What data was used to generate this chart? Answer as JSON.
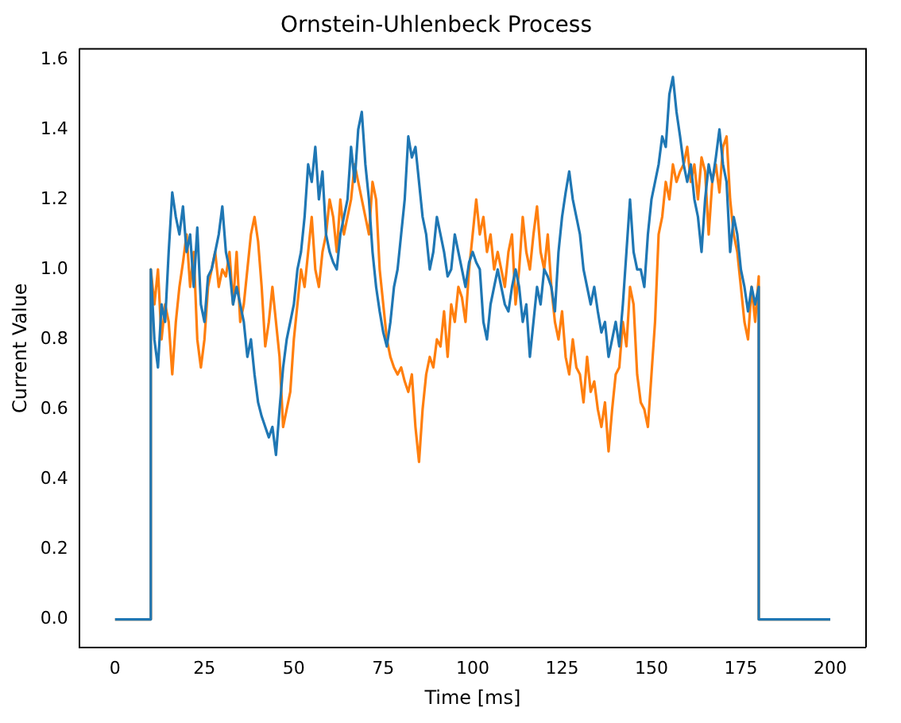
{
  "chart_data": {
    "type": "line",
    "title": "Ornstein-Uhlenbeck Process",
    "xlabel": "Time [ms]",
    "ylabel": "Current Value",
    "x": [
      0,
      10,
      10,
      11,
      12,
      13,
      14,
      15,
      16,
      17,
      18,
      19,
      20,
      21,
      22,
      23,
      24,
      25,
      26,
      27,
      28,
      29,
      30,
      31,
      32,
      33,
      34,
      35,
      36,
      37,
      38,
      39,
      40,
      41,
      42,
      43,
      44,
      45,
      46,
      47,
      48,
      49,
      50,
      51,
      52,
      53,
      54,
      55,
      56,
      57,
      58,
      59,
      60,
      61,
      62,
      63,
      64,
      65,
      66,
      67,
      68,
      69,
      70,
      71,
      72,
      73,
      74,
      75,
      76,
      77,
      78,
      79,
      80,
      81,
      82,
      83,
      84,
      85,
      86,
      87,
      88,
      89,
      90,
      91,
      92,
      93,
      94,
      95,
      96,
      97,
      98,
      99,
      100,
      101,
      102,
      103,
      104,
      105,
      106,
      107,
      108,
      109,
      110,
      111,
      112,
      113,
      114,
      115,
      116,
      117,
      118,
      119,
      120,
      121,
      122,
      123,
      124,
      125,
      126,
      127,
      128,
      129,
      130,
      131,
      132,
      133,
      134,
      135,
      136,
      137,
      138,
      139,
      140,
      141,
      142,
      143,
      144,
      145,
      146,
      147,
      148,
      149,
      150,
      151,
      152,
      153,
      154,
      155,
      156,
      157,
      158,
      159,
      160,
      161,
      162,
      163,
      164,
      165,
      166,
      167,
      168,
      169,
      170,
      171,
      172,
      173,
      174,
      175,
      176,
      177,
      178,
      179,
      180,
      180,
      200
    ],
    "series": [
      {
        "color": "#1f77b4",
        "values": [
          0,
          0,
          1.0,
          0.8,
          0.72,
          0.9,
          0.85,
          1.05,
          1.22,
          1.15,
          1.1,
          1.18,
          1.05,
          1.1,
          0.95,
          1.12,
          0.9,
          0.85,
          0.98,
          1.0,
          1.05,
          1.1,
          1.18,
          1.05,
          1.0,
          0.9,
          0.95,
          0.9,
          0.85,
          0.75,
          0.8,
          0.7,
          0.62,
          0.58,
          0.55,
          0.52,
          0.55,
          0.47,
          0.6,
          0.72,
          0.8,
          0.85,
          0.9,
          1.0,
          1.05,
          1.15,
          1.3,
          1.25,
          1.35,
          1.2,
          1.28,
          1.1,
          1.05,
          1.02,
          1.0,
          1.1,
          1.15,
          1.2,
          1.35,
          1.25,
          1.4,
          1.45,
          1.3,
          1.2,
          1.05,
          0.95,
          0.88,
          0.82,
          0.78,
          0.85,
          0.95,
          1.0,
          1.1,
          1.2,
          1.38,
          1.32,
          1.35,
          1.25,
          1.15,
          1.1,
          1.0,
          1.05,
          1.15,
          1.1,
          1.05,
          0.98,
          1.0,
          1.1,
          1.05,
          1.0,
          0.95,
          1.02,
          1.05,
          1.02,
          1.0,
          0.85,
          0.8,
          0.9,
          0.95,
          1.0,
          0.95,
          0.9,
          0.88,
          0.95,
          1.0,
          0.95,
          0.85,
          0.9,
          0.75,
          0.85,
          0.95,
          0.9,
          1.0,
          0.98,
          0.95,
          0.88,
          1.05,
          1.15,
          1.22,
          1.28,
          1.2,
          1.15,
          1.1,
          1.0,
          0.95,
          0.9,
          0.95,
          0.88,
          0.82,
          0.85,
          0.75,
          0.8,
          0.85,
          0.78,
          0.9,
          1.05,
          1.2,
          1.05,
          1.0,
          1.0,
          0.95,
          1.1,
          1.2,
          1.25,
          1.3,
          1.38,
          1.35,
          1.5,
          1.55,
          1.45,
          1.38,
          1.3,
          1.25,
          1.3,
          1.2,
          1.15,
          1.05,
          1.2,
          1.3,
          1.25,
          1.32,
          1.4,
          1.3,
          1.25,
          1.05,
          1.15,
          1.1,
          1.0,
          0.95,
          0.88,
          0.95,
          0.9,
          0.95,
          0,
          0
        ]
      },
      {
        "color": "#ff7f0e",
        "values": [
          0,
          0,
          1.0,
          0.9,
          1.0,
          0.8,
          0.9,
          0.85,
          0.7,
          0.85,
          0.95,
          1.02,
          1.1,
          0.95,
          1.05,
          0.8,
          0.72,
          0.8,
          0.95,
          1.0,
          1.05,
          0.95,
          1.0,
          0.98,
          1.05,
          0.9,
          1.05,
          0.85,
          0.9,
          1.0,
          1.1,
          1.15,
          1.08,
          0.95,
          0.78,
          0.85,
          0.95,
          0.85,
          0.75,
          0.55,
          0.6,
          0.65,
          0.8,
          0.9,
          1.0,
          0.95,
          1.05,
          1.15,
          1.0,
          0.95,
          1.05,
          1.1,
          1.2,
          1.15,
          1.05,
          1.2,
          1.1,
          1.15,
          1.2,
          1.3,
          1.25,
          1.2,
          1.15,
          1.1,
          1.25,
          1.2,
          1.0,
          0.9,
          0.8,
          0.75,
          0.72,
          0.7,
          0.72,
          0.68,
          0.65,
          0.7,
          0.55,
          0.45,
          0.6,
          0.7,
          0.75,
          0.72,
          0.8,
          0.78,
          0.88,
          0.75,
          0.9,
          0.85,
          0.95,
          0.92,
          0.85,
          1.0,
          1.1,
          1.2,
          1.1,
          1.15,
          1.05,
          1.1,
          1.0,
          1.05,
          1.0,
          0.95,
          1.05,
          1.1,
          0.9,
          1.0,
          1.15,
          1.05,
          1.0,
          1.1,
          1.18,
          1.05,
          1.0,
          1.1,
          0.95,
          0.85,
          0.8,
          0.88,
          0.75,
          0.7,
          0.8,
          0.72,
          0.7,
          0.62,
          0.75,
          0.65,
          0.68,
          0.6,
          0.55,
          0.62,
          0.48,
          0.6,
          0.7,
          0.72,
          0.85,
          0.78,
          0.95,
          0.9,
          0.7,
          0.62,
          0.6,
          0.55,
          0.7,
          0.85,
          1.1,
          1.15,
          1.25,
          1.2,
          1.3,
          1.25,
          1.28,
          1.3,
          1.35,
          1.25,
          1.3,
          1.2,
          1.32,
          1.28,
          1.1,
          1.25,
          1.3,
          1.22,
          1.35,
          1.38,
          1.2,
          1.1,
          1.05,
          0.95,
          0.85,
          0.8,
          0.95,
          0.85,
          0.98,
          0,
          0
        ]
      }
    ],
    "xlim": [
      -10,
      210
    ],
    "xticks": [
      0,
      25,
      50,
      75,
      100,
      125,
      150,
      175,
      200
    ],
    "ylim": [
      -0.08,
      1.63
    ],
    "yticks": [
      {
        "value": 0,
        "label": "0.0"
      },
      {
        "value": 0.2,
        "label": "0.2"
      },
      {
        "value": 0.4,
        "label": "0.4"
      },
      {
        "value": 0.6,
        "label": "0.6"
      },
      {
        "value": 0.8,
        "label": "0.8"
      },
      {
        "value": 1.0,
        "label": "1.0"
      },
      {
        "value": 1.2,
        "label": "1.2"
      },
      {
        "value": 1.4,
        "label": "1.4"
      },
      {
        "value": 1.6,
        "label": "1.6"
      }
    ],
    "grid": false,
    "legend": false,
    "line_style": "solid",
    "marker": "none"
  }
}
